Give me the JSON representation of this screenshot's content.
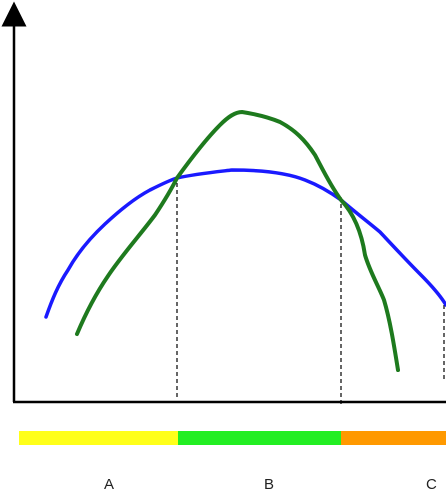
{
  "colors": {
    "axis": "#000000",
    "curve_blue": "#1a1aff",
    "curve_green": "#1e7a1e",
    "divider": "#000000",
    "zone_a": "#ffff1a",
    "zone_b": "#22ee22",
    "zone_c": "#ff9900"
  },
  "curves": [
    {
      "id": "blue-curve",
      "color_key": "curve_blue"
    },
    {
      "id": "green-curve",
      "color_key": "curve_green"
    }
  ],
  "zones": [
    {
      "id": "zone-a",
      "label": "A",
      "color_key": "zone_a"
    },
    {
      "id": "zone-b",
      "label": "B",
      "color_key": "zone_b"
    },
    {
      "id": "zone-c",
      "label": "C",
      "color_key": "zone_c"
    }
  ]
}
